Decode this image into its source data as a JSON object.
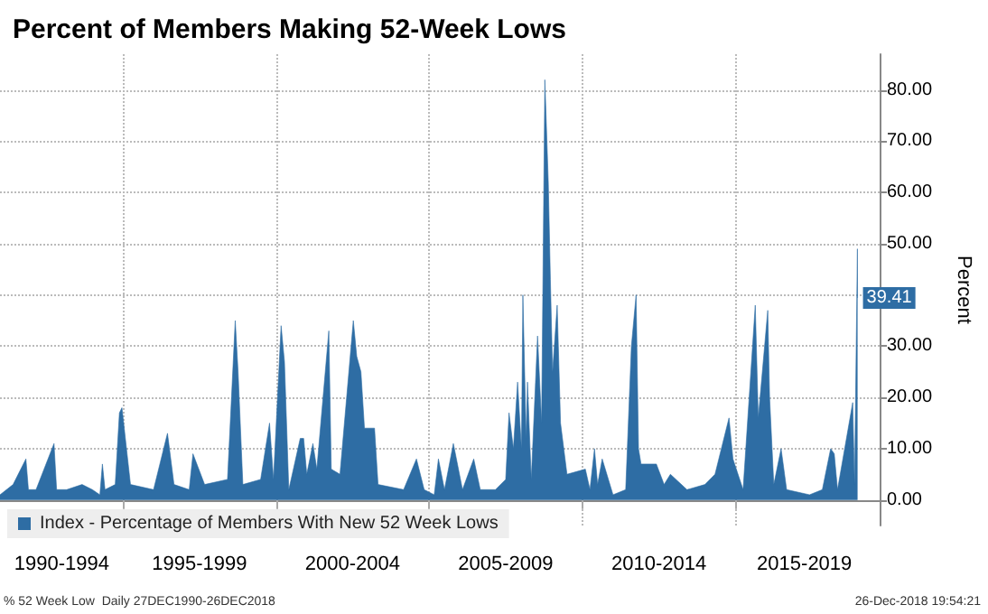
{
  "chart_data": {
    "type": "area",
    "title": "Percent of Members Making 52-Week Lows",
    "ylabel": "Percent",
    "x": [
      "1990-12-27",
      "1991-06-01",
      "1991-11-01",
      "1991-12-01",
      "1992-03-01",
      "1992-10-01",
      "1992-11-01",
      "1993-03-01",
      "1993-09-01",
      "1994-01-01",
      "1994-04-01",
      "1994-05-01",
      "1994-06-01",
      "1994-10-01",
      "1994-11-20",
      "1994-12-20",
      "1995-04-01",
      "1996-01-01",
      "1996-06-15",
      "1996-09-01",
      "1997-03-01",
      "1997-04-15",
      "1997-09-01",
      "1998-06-01",
      "1998-09-01",
      "1998-10-05",
      "1998-12-01",
      "1999-07-01",
      "1999-10-15",
      "1999-12-01",
      "2000-03-01",
      "2000-04-10",
      "2000-06-01",
      "2000-10-15",
      "2000-11-25",
      "2001-01-01",
      "2001-03-15",
      "2001-05-01",
      "2001-09-21",
      "2001-10-20",
      "2002-02-01",
      "2002-07-10",
      "2002-08-20",
      "2002-10-09",
      "2002-11-20",
      "2003-03-20",
      "2003-05-01",
      "2004-03-01",
      "2004-08-01",
      "2004-11-01",
      "2005-03-01",
      "2005-04-20",
      "2005-07-01",
      "2005-10-15",
      "2006-02-01",
      "2006-06-15",
      "2006-09-01",
      "2007-03-01",
      "2007-07-01",
      "2007-08-10",
      "2007-10-01",
      "2007-11-20",
      "2008-01-05",
      "2008-01-22",
      "2008-03-01",
      "2008-03-17",
      "2008-05-01",
      "2008-07-15",
      "2008-09-01",
      "2008-10-10",
      "2008-11-20",
      "2008-12-15",
      "2009-01-10",
      "2009-03-06",
      "2009-04-15",
      "2009-07-01",
      "2010-02-05",
      "2010-04-01",
      "2010-05-25",
      "2010-07-01",
      "2010-08-25",
      "2011-01-01",
      "2011-06-01",
      "2011-08-08",
      "2011-10-03",
      "2011-11-01",
      "2011-12-01",
      "2012-06-01",
      "2012-09-01",
      "2012-11-15",
      "2013-06-01",
      "2014-01-01",
      "2014-05-01",
      "2014-10-15",
      "2014-12-01",
      "2015-04-01",
      "2015-08-24",
      "2015-09-29",
      "2016-01-20",
      "2016-02-11",
      "2016-04-01",
      "2016-06-27",
      "2016-09-01",
      "2017-06-01",
      "2017-11-01",
      "2018-02-08",
      "2018-03-23",
      "2018-05-01",
      "2018-10-29",
      "2018-11-20",
      "2018-12-24",
      "2018-12-26"
    ],
    "series": [
      {
        "name": "Index - Percentage of Members With New 52 Week Lows",
        "color": "#2e6da4",
        "values": [
          1,
          3,
          8,
          2,
          2,
          11,
          2,
          2,
          3,
          2,
          1,
          7,
          2,
          3,
          17,
          18,
          3,
          2,
          13,
          3,
          2,
          9,
          3,
          4,
          35,
          25,
          3,
          4,
          15,
          4,
          34,
          27,
          2,
          12,
          12,
          5,
          11,
          6,
          33,
          6,
          5,
          35,
          28,
          25,
          14,
          14,
          3,
          2,
          8,
          2,
          1,
          8,
          2,
          11,
          2,
          8,
          2,
          2,
          4,
          17,
          10,
          23,
          10,
          40,
          12,
          23,
          4,
          32,
          15,
          82,
          62,
          43,
          25,
          38,
          15,
          5,
          6,
          2,
          10,
          3,
          8,
          1,
          2,
          30,
          40,
          10,
          7,
          7,
          3,
          5,
          2,
          3,
          5,
          16,
          8,
          2,
          38,
          16,
          37,
          20,
          3,
          10,
          2,
          1,
          2,
          10,
          9,
          2,
          19,
          3,
          49,
          39.41
        ],
        "value_labels": [
          null,
          null,
          null,
          null,
          null,
          null,
          null,
          null,
          null,
          null,
          null,
          null,
          null,
          null,
          null,
          null,
          null,
          null,
          null,
          null,
          null,
          null,
          null,
          null,
          null,
          null,
          null,
          null,
          null,
          null,
          null,
          null,
          null,
          null,
          null,
          null,
          null,
          null,
          null,
          null,
          null,
          null,
          null,
          null,
          null,
          null,
          null,
          null,
          null,
          null,
          null,
          null,
          null,
          null,
          null,
          null,
          null,
          null,
          null,
          null,
          null,
          null,
          null,
          null,
          null,
          null,
          null,
          null,
          null,
          null,
          null,
          null,
          null,
          null,
          null,
          null,
          null,
          null,
          null,
          null,
          null,
          null,
          null,
          null,
          null,
          null,
          null,
          null,
          null,
          null,
          null,
          null,
          null,
          null,
          null,
          null,
          null,
          null,
          null,
          null,
          null,
          null,
          null,
          null,
          null,
          null,
          null,
          null,
          null,
          null,
          null,
          "39.41"
        ]
      }
    ],
    "xlim": [
      "1990-12-27",
      "2019-09-15"
    ],
    "xticks": [
      {
        "value": "1993",
        "label": "1990-1994"
      },
      {
        "value": "1995",
        "label": null
      },
      {
        "value": "1997-07",
        "label": "1995-1999"
      },
      {
        "value": "2000",
        "label": null
      },
      {
        "value": "2002-07",
        "label": "2000-2004"
      },
      {
        "value": "2005",
        "label": null
      },
      {
        "value": "2007-07",
        "label": "2005-2009"
      },
      {
        "value": "2010",
        "label": null
      },
      {
        "value": "2012-07",
        "label": "2010-2014"
      },
      {
        "value": "2015",
        "label": null
      },
      {
        "value": "2017-04",
        "label": "2015-2019"
      }
    ],
    "ylim": [
      -5,
      87
    ],
    "yticks": [
      {
        "value": 0,
        "label": "0.00"
      },
      {
        "value": 10,
        "label": "10.00"
      },
      {
        "value": 20,
        "label": "20.00"
      },
      {
        "value": 30,
        "label": "30.00"
      },
      {
        "value": 40,
        "label": null
      },
      {
        "value": 50,
        "label": "50.00"
      },
      {
        "value": 60,
        "label": "60.00"
      },
      {
        "value": 70,
        "label": "70.00"
      },
      {
        "value": 80,
        "label": "80.00"
      }
    ],
    "grid": true,
    "legend": "bottom left",
    "annotations": [
      "% 52 Week Low  Daily 27DEC1990-26DEC2018",
      "26-Dec-2018 19:54:21"
    ]
  }
}
